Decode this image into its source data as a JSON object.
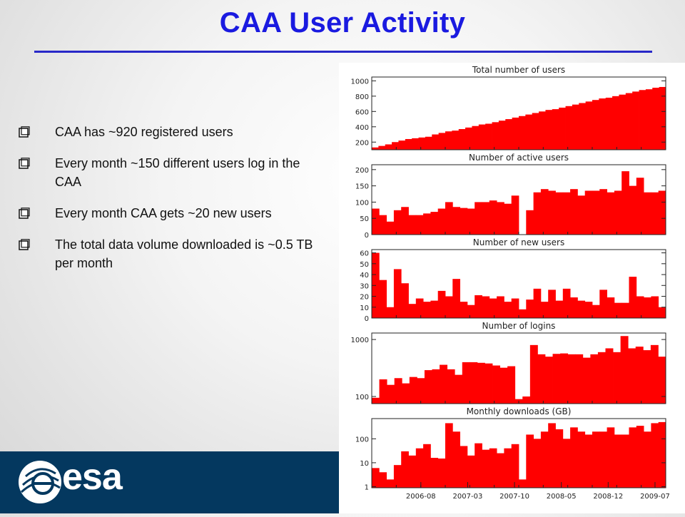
{
  "slide": {
    "title": "CAA User Activity",
    "bullets": [
      "CAA has ~920 registered users",
      "Every month ~150 different users log in the CAA",
      "Every month CAA gets ~20 new users",
      "The total data volume downloaded is ~0.5 TB per month"
    ]
  },
  "footer": {
    "logo_text": "esa"
  },
  "colors": {
    "title": "#1a1ae0",
    "rule": "#2828c8",
    "bar": "#ff0000",
    "footer": "#04385f"
  },
  "chart_data": [
    {
      "type": "bar",
      "title": "Total number of users",
      "ylim": [
        100,
        1050
      ],
      "yticks": [
        200,
        400,
        600,
        800,
        1000
      ],
      "values": [
        130,
        150,
        170,
        200,
        220,
        240,
        250,
        260,
        270,
        300,
        320,
        340,
        350,
        370,
        390,
        410,
        430,
        440,
        460,
        480,
        500,
        520,
        540,
        560,
        580,
        600,
        620,
        630,
        650,
        670,
        690,
        710,
        730,
        750,
        770,
        780,
        800,
        820,
        840,
        860,
        880,
        890,
        910,
        920
      ]
    },
    {
      "type": "bar",
      "title": "Number of active users",
      "ylim": [
        0,
        215
      ],
      "yticks": [
        0,
        50,
        100,
        150,
        200
      ],
      "values": [
        80,
        60,
        40,
        75,
        85,
        60,
        60,
        65,
        70,
        80,
        100,
        85,
        82,
        80,
        100,
        100,
        105,
        100,
        95,
        120,
        0,
        75,
        130,
        140,
        135,
        130,
        130,
        140,
        120,
        135,
        135,
        140,
        130,
        135,
        195,
        150,
        175,
        130,
        130,
        135
      ]
    },
    {
      "type": "bar",
      "title": "Number of new users",
      "ylim": [
        0,
        63
      ],
      "yticks": [
        0,
        10,
        20,
        30,
        40,
        50,
        60
      ],
      "values": [
        60,
        35,
        10,
        45,
        32,
        13,
        18,
        15,
        16,
        25,
        20,
        36,
        15,
        12,
        21,
        20,
        18,
        20,
        15,
        18,
        8,
        17,
        27,
        15,
        26,
        16,
        27,
        19,
        16,
        15,
        12,
        26,
        19,
        14,
        14,
        38,
        20,
        19,
        20,
        10
      ]
    },
    {
      "type": "bar",
      "title": "Number of logins",
      "scale": "log",
      "ylim": [
        75,
        1300
      ],
      "yticks": [
        100,
        1000
      ],
      "values": [
        95,
        200,
        160,
        210,
        170,
        220,
        210,
        290,
        300,
        360,
        300,
        240,
        400,
        400,
        390,
        380,
        350,
        320,
        340,
        90,
        100,
        800,
        550,
        500,
        560,
        570,
        550,
        550,
        480,
        550,
        600,
        700,
        600,
        1150,
        700,
        750,
        650,
        800,
        500
      ]
    },
    {
      "type": "bar",
      "title": "Monthly downloads (GB)",
      "scale": "log",
      "ylim": [
        0.9,
        700
      ],
      "yticks": [
        1,
        10,
        100
      ],
      "x_tick_labels": [
        "2006-08",
        "2007-03",
        "2007-10",
        "2008-05",
        "2008-12",
        "2009-07"
      ],
      "values": [
        6,
        4,
        2,
        8,
        30,
        20,
        40,
        60,
        16,
        15,
        450,
        200,
        50,
        20,
        65,
        35,
        40,
        25,
        40,
        60,
        2,
        150,
        100,
        200,
        450,
        250,
        100,
        300,
        200,
        150,
        200,
        200,
        300,
        150,
        150,
        300,
        350,
        200,
        450,
        500
      ]
    }
  ]
}
